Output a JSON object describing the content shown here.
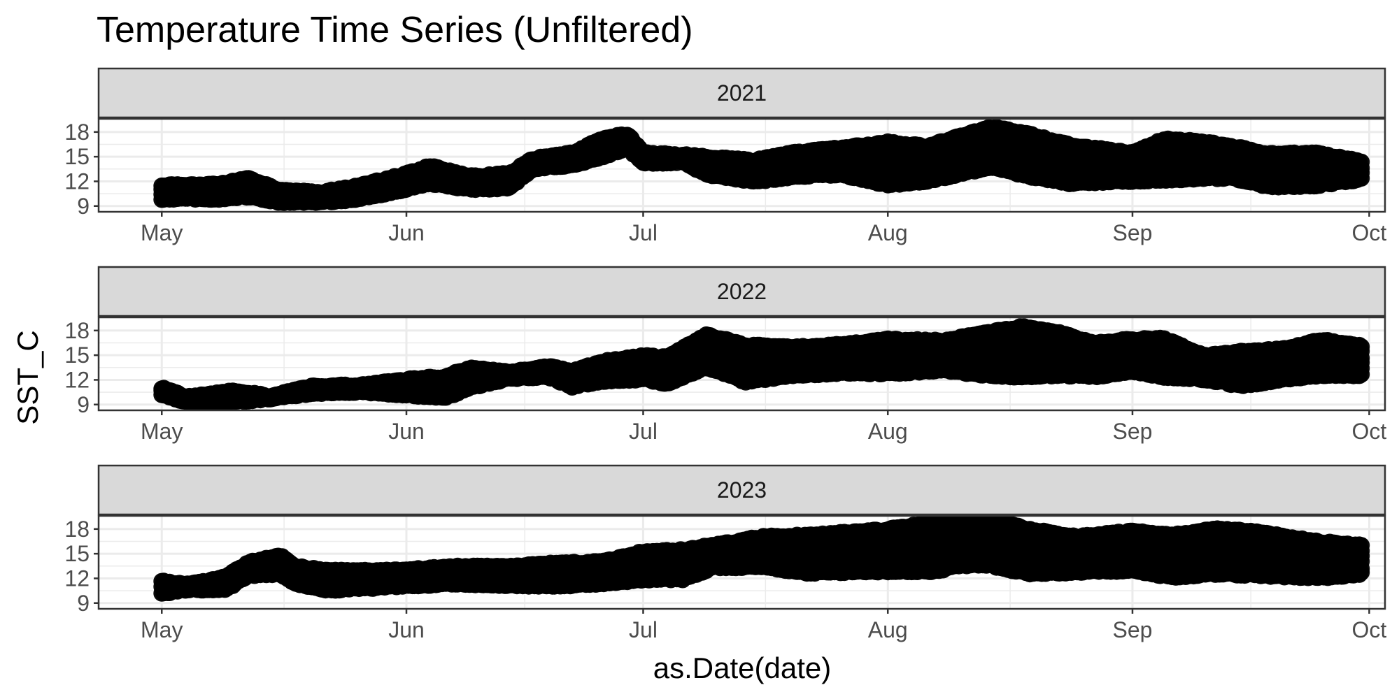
{
  "chart_data": {
    "type": "scatter",
    "title": "Temperature Time Series (Unfiltered)",
    "xlabel": "as.Date(date)",
    "ylabel": "SST_C",
    "x_ticks": [
      "May",
      "Jun",
      "Jul",
      "Aug",
      "Sep",
      "Oct"
    ],
    "x_tick_dates": [
      "05-01",
      "06-01",
      "07-01",
      "08-01",
      "09-01",
      "10-01"
    ],
    "x_range": [
      "04-23",
      "10-03"
    ],
    "y_ticks": [
      9,
      12,
      15,
      18
    ],
    "y_range": [
      8.3,
      19.6
    ],
    "point_color": "#000000",
    "strip_fill": "#d9d9d9",
    "panel_border": "#333333",
    "grid_color": "#ebebeb",
    "grid": true,
    "legend": "none",
    "panels": [
      {
        "label": "2021",
        "series_envelope": [
          {
            "date": "05-01",
            "low": 9.3,
            "high": 12.1
          },
          {
            "date": "05-08",
            "low": 9.3,
            "high": 12.2
          },
          {
            "date": "05-12",
            "low": 9.6,
            "high": 12.9
          },
          {
            "date": "05-16",
            "low": 8.9,
            "high": 11.5
          },
          {
            "date": "05-21",
            "low": 8.9,
            "high": 11.2
          },
          {
            "date": "05-26",
            "low": 9.3,
            "high": 12.0
          },
          {
            "date": "06-01",
            "low": 10.5,
            "high": 13.5
          },
          {
            "date": "06-04",
            "low": 11.2,
            "high": 14.4
          },
          {
            "date": "06-09",
            "low": 10.5,
            "high": 13.2
          },
          {
            "date": "06-14",
            "low": 10.6,
            "high": 13.5
          },
          {
            "date": "06-17",
            "low": 13.0,
            "high": 15.3
          },
          {
            "date": "06-22",
            "low": 13.3,
            "high": 16.0
          },
          {
            "date": "06-26",
            "low": 14.5,
            "high": 17.8
          },
          {
            "date": "06-29",
            "low": 15.5,
            "high": 18.3
          },
          {
            "date": "07-01",
            "low": 13.6,
            "high": 16.0
          },
          {
            "date": "07-06",
            "low": 13.8,
            "high": 15.8
          },
          {
            "date": "07-09",
            "low": 12.3,
            "high": 15.5
          },
          {
            "date": "07-15",
            "low": 11.4,
            "high": 15.1
          },
          {
            "date": "07-20",
            "low": 12.0,
            "high": 16.0
          },
          {
            "date": "07-26",
            "low": 12.3,
            "high": 16.6
          },
          {
            "date": "08-01",
            "low": 11.0,
            "high": 17.3
          },
          {
            "date": "08-06",
            "low": 11.5,
            "high": 16.8
          },
          {
            "date": "08-10",
            "low": 12.3,
            "high": 18.0
          },
          {
            "date": "08-14",
            "low": 13.2,
            "high": 19.2
          },
          {
            "date": "08-18",
            "low": 12.2,
            "high": 18.5
          },
          {
            "date": "08-24",
            "low": 11.2,
            "high": 17.0
          },
          {
            "date": "09-01",
            "low": 11.5,
            "high": 16.0
          },
          {
            "date": "09-05",
            "low": 11.6,
            "high": 17.7
          },
          {
            "date": "09-10",
            "low": 11.8,
            "high": 17.4
          },
          {
            "date": "09-14",
            "low": 11.8,
            "high": 16.8
          },
          {
            "date": "09-18",
            "low": 10.8,
            "high": 15.9
          },
          {
            "date": "09-24",
            "low": 10.9,
            "high": 16.0
          },
          {
            "date": "09-30",
            "low": 11.7,
            "high": 15.0
          }
        ]
      },
      {
        "label": "2022",
        "series_envelope": [
          {
            "date": "05-01",
            "low": 9.6,
            "high": 11.6
          },
          {
            "date": "05-04",
            "low": 8.7,
            "high": 10.5
          },
          {
            "date": "05-10",
            "low": 8.7,
            "high": 11.2
          },
          {
            "date": "05-15",
            "low": 9.2,
            "high": 10.6
          },
          {
            "date": "05-20",
            "low": 9.8,
            "high": 11.8
          },
          {
            "date": "05-26",
            "low": 10.0,
            "high": 11.9
          },
          {
            "date": "06-01",
            "low": 9.6,
            "high": 12.6
          },
          {
            "date": "06-06",
            "low": 9.3,
            "high": 13.0
          },
          {
            "date": "06-09",
            "low": 10.5,
            "high": 14.0
          },
          {
            "date": "06-14",
            "low": 11.6,
            "high": 13.5
          },
          {
            "date": "06-19",
            "low": 11.8,
            "high": 14.2
          },
          {
            "date": "06-22",
            "low": 10.6,
            "high": 13.6
          },
          {
            "date": "06-26",
            "low": 11.3,
            "high": 14.8
          },
          {
            "date": "07-01",
            "low": 11.5,
            "high": 15.5
          },
          {
            "date": "07-04",
            "low": 11.0,
            "high": 15.3
          },
          {
            "date": "07-09",
            "low": 13.0,
            "high": 18.0
          },
          {
            "date": "07-14",
            "low": 11.2,
            "high": 16.8
          },
          {
            "date": "07-20",
            "low": 12.0,
            "high": 16.5
          },
          {
            "date": "07-27",
            "low": 12.3,
            "high": 16.9
          },
          {
            "date": "08-01",
            "low": 12.2,
            "high": 17.5
          },
          {
            "date": "08-08",
            "low": 12.6,
            "high": 17.3
          },
          {
            "date": "08-13",
            "low": 12.0,
            "high": 18.2
          },
          {
            "date": "08-18",
            "low": 11.8,
            "high": 19.0
          },
          {
            "date": "08-23",
            "low": 12.0,
            "high": 18.2
          },
          {
            "date": "08-27",
            "low": 11.8,
            "high": 17.0
          },
          {
            "date": "09-01",
            "low": 12.5,
            "high": 17.5
          },
          {
            "date": "09-05",
            "low": 11.8,
            "high": 17.6
          },
          {
            "date": "09-10",
            "low": 11.5,
            "high": 15.5
          },
          {
            "date": "09-15",
            "low": 10.7,
            "high": 16.0
          },
          {
            "date": "09-20",
            "low": 11.5,
            "high": 16.3
          },
          {
            "date": "09-25",
            "low": 12.0,
            "high": 17.4
          },
          {
            "date": "09-30",
            "low": 12.0,
            "high": 16.7
          }
        ]
      },
      {
        "label": "2023",
        "series_envelope": [
          {
            "date": "05-01",
            "low": 9.6,
            "high": 12.2
          },
          {
            "date": "05-04",
            "low": 10.0,
            "high": 11.8
          },
          {
            "date": "05-09",
            "low": 10.0,
            "high": 12.7
          },
          {
            "date": "05-12",
            "low": 11.8,
            "high": 14.5
          },
          {
            "date": "05-16",
            "low": 12.0,
            "high": 15.3
          },
          {
            "date": "05-18",
            "low": 10.8,
            "high": 14.0
          },
          {
            "date": "05-22",
            "low": 10.0,
            "high": 13.5
          },
          {
            "date": "05-28",
            "low": 10.3,
            "high": 13.5
          },
          {
            "date": "06-01",
            "low": 10.5,
            "high": 13.6
          },
          {
            "date": "06-07",
            "low": 10.8,
            "high": 14.0
          },
          {
            "date": "06-14",
            "low": 10.6,
            "high": 14.0
          },
          {
            "date": "06-20",
            "low": 10.5,
            "high": 14.4
          },
          {
            "date": "06-26",
            "low": 10.8,
            "high": 14.6
          },
          {
            "date": "07-01",
            "low": 11.3,
            "high": 15.8
          },
          {
            "date": "07-06",
            "low": 11.3,
            "high": 16.0
          },
          {
            "date": "07-10",
            "low": 12.8,
            "high": 16.6
          },
          {
            "date": "07-16",
            "low": 12.8,
            "high": 17.6
          },
          {
            "date": "07-22",
            "low": 12.1,
            "high": 17.8
          },
          {
            "date": "08-01",
            "low": 12.3,
            "high": 18.5
          },
          {
            "date": "08-07",
            "low": 12.3,
            "high": 19.4
          },
          {
            "date": "08-10",
            "low": 13.0,
            "high": 19.8
          },
          {
            "date": "08-14",
            "low": 13.0,
            "high": 19.8
          },
          {
            "date": "08-19",
            "low": 12.0,
            "high": 18.5
          },
          {
            "date": "08-25",
            "low": 12.2,
            "high": 17.6
          },
          {
            "date": "09-01",
            "low": 12.4,
            "high": 18.3
          },
          {
            "date": "09-06",
            "low": 11.6,
            "high": 17.8
          },
          {
            "date": "09-12",
            "low": 12.0,
            "high": 18.6
          },
          {
            "date": "09-17",
            "low": 11.8,
            "high": 18.2
          },
          {
            "date": "09-21",
            "low": 11.6,
            "high": 17.5
          },
          {
            "date": "09-25",
            "low": 11.5,
            "high": 17.0
          },
          {
            "date": "09-30",
            "low": 12.0,
            "high": 16.6
          }
        ]
      }
    ]
  }
}
